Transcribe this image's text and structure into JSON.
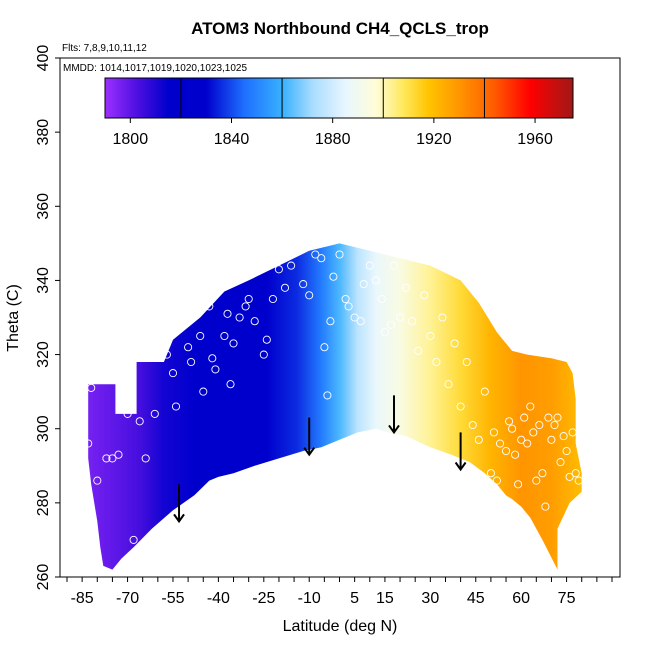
{
  "chart_data": {
    "type": "heatmap",
    "title": "ATOM3 Northbound CH4_QCLS_trop",
    "subtitle_flights": "Flts: 7,8,9,10,11,12",
    "subtitle_dates": "MMDD: 1014,1017,1019,1020,1023,1025",
    "xlabel": "Latitude (deg N)",
    "ylabel": "Theta (C)",
    "xlim": [
      -90,
      90
    ],
    "ylim": [
      260,
      400
    ],
    "x_ticks": [
      "-85",
      "-70",
      "-55",
      "-40",
      "-25",
      "-10",
      "5",
      "15",
      "30",
      "45",
      "60",
      "75"
    ],
    "x_tick_values": [
      -85,
      -70,
      -55,
      -40,
      -25,
      -10,
      5,
      15,
      30,
      45,
      60,
      75
    ],
    "x_minor_step": 5,
    "y_ticks": [
      "260",
      "280",
      "300",
      "320",
      "340",
      "360",
      "380",
      "400"
    ],
    "y_tick_values": [
      260,
      280,
      300,
      320,
      340,
      360,
      380,
      400
    ],
    "colorbar": {
      "min": 1790,
      "max": 1975,
      "ticks": [
        "1800",
        "1840",
        "1880",
        "1920",
        "1960"
      ],
      "tick_values": [
        1800,
        1840,
        1880,
        1920,
        1960
      ],
      "dividers": [
        1820,
        1860,
        1900,
        1940
      ],
      "stops": [
        {
          "value": 1790,
          "color": "#9B30FF"
        },
        {
          "value": 1803,
          "color": "#4B0FE0"
        },
        {
          "value": 1815,
          "color": "#0000CD"
        },
        {
          "value": 1830,
          "color": "#0000CD"
        },
        {
          "value": 1845,
          "color": "#1E6FFF"
        },
        {
          "value": 1860,
          "color": "#38B0FF"
        },
        {
          "value": 1872,
          "color": "#A8DCFF"
        },
        {
          "value": 1885,
          "color": "#E8F6FF"
        },
        {
          "value": 1897,
          "color": "#FFFDD8"
        },
        {
          "value": 1908,
          "color": "#FFE85C"
        },
        {
          "value": 1918,
          "color": "#FFC400"
        },
        {
          "value": 1930,
          "color": "#FF9500"
        },
        {
          "value": 1944,
          "color": "#FF5A00"
        },
        {
          "value": 1958,
          "color": "#FF0000"
        },
        {
          "value": 1975,
          "color": "#A01818"
        }
      ]
    },
    "field_boundary": [
      [
        -83,
        312
      ],
      [
        -74,
        312
      ],
      [
        -74,
        304
      ],
      [
        -67,
        304
      ],
      [
        -67,
        318
      ],
      [
        -58,
        318
      ],
      [
        -55,
        324
      ],
      [
        -46,
        330
      ],
      [
        -38,
        337
      ],
      [
        -30,
        340
      ],
      [
        -20,
        344
      ],
      [
        -10,
        348
      ],
      [
        0,
        350
      ],
      [
        10,
        348
      ],
      [
        20,
        346
      ],
      [
        30,
        344
      ],
      [
        40,
        340
      ],
      [
        46,
        334
      ],
      [
        52,
        326
      ],
      [
        57,
        321
      ],
      [
        62,
        320
      ],
      [
        70,
        319
      ],
      [
        75,
        318
      ],
      [
        77,
        315
      ],
      [
        78,
        308
      ],
      [
        78,
        296
      ],
      [
        80,
        288
      ],
      [
        80,
        283
      ],
      [
        76,
        280
      ],
      [
        72,
        273
      ],
      [
        72,
        262
      ],
      [
        67,
        270
      ],
      [
        63,
        276
      ],
      [
        60,
        279
      ],
      [
        57,
        281
      ],
      [
        55,
        282
      ],
      [
        52,
        285
      ],
      [
        48,
        288
      ],
      [
        43,
        291
      ],
      [
        37,
        293
      ],
      [
        30,
        295
      ],
      [
        22,
        298
      ],
      [
        16,
        299
      ],
      [
        12,
        300
      ],
      [
        6,
        299
      ],
      [
        0,
        297
      ],
      [
        -6,
        295
      ],
      [
        -12,
        294
      ],
      [
        -20,
        292
      ],
      [
        -28,
        290
      ],
      [
        -35,
        288
      ],
      [
        -40,
        287
      ],
      [
        -43,
        286
      ],
      [
        -48,
        282
      ],
      [
        -55,
        278
      ],
      [
        -62,
        273
      ],
      [
        -68,
        268
      ],
      [
        -72,
        265
      ],
      [
        -75,
        262
      ],
      [
        -78,
        263
      ],
      [
        -79,
        268
      ],
      [
        -80,
        275
      ],
      [
        -82,
        285
      ],
      [
        -83,
        292
      ],
      [
        -83,
        300
      ],
      [
        -83,
        312
      ]
    ],
    "field_columns": [
      {
        "lat": -83,
        "value": 1796
      },
      {
        "lat": -74,
        "value": 1800
      },
      {
        "lat": -66,
        "value": 1804
      },
      {
        "lat": -58,
        "value": 1812
      },
      {
        "lat": -48,
        "value": 1818
      },
      {
        "lat": -36,
        "value": 1822
      },
      {
        "lat": -24,
        "value": 1828
      },
      {
        "lat": -14,
        "value": 1836
      },
      {
        "lat": -6,
        "value": 1848
      },
      {
        "lat": 0,
        "value": 1862
      },
      {
        "lat": 6,
        "value": 1876
      },
      {
        "lat": 12,
        "value": 1886
      },
      {
        "lat": 20,
        "value": 1894
      },
      {
        "lat": 30,
        "value": 1903
      },
      {
        "lat": 40,
        "value": 1912
      },
      {
        "lat": 50,
        "value": 1922
      },
      {
        "lat": 60,
        "value": 1930
      },
      {
        "lat": 70,
        "value": 1928
      },
      {
        "lat": 80,
        "value": 1920
      }
    ],
    "sample_points": [
      [
        -83,
        296
      ],
      [
        -82,
        311
      ],
      [
        -80,
        286
      ],
      [
        -77,
        292
      ],
      [
        -76,
        261
      ],
      [
        -75,
        292
      ],
      [
        -73,
        293
      ],
      [
        -70,
        304
      ],
      [
        -68,
        270
      ],
      [
        -66,
        302
      ],
      [
        -64,
        292
      ],
      [
        -61,
        304
      ],
      [
        -58,
        321
      ],
      [
        -57,
        320
      ],
      [
        -55,
        315
      ],
      [
        -54,
        306
      ],
      [
        -50,
        322
      ],
      [
        -49,
        318
      ],
      [
        -46,
        325
      ],
      [
        -45,
        310
      ],
      [
        -43,
        333
      ],
      [
        -42,
        319
      ],
      [
        -41,
        316
      ],
      [
        -38,
        325
      ],
      [
        -37,
        331
      ],
      [
        -36,
        312
      ],
      [
        -35,
        323
      ],
      [
        -33,
        330
      ],
      [
        -31,
        333
      ],
      [
        -30,
        335
      ],
      [
        -28,
        329
      ],
      [
        -25,
        320
      ],
      [
        -24,
        324
      ],
      [
        -22,
        335
      ],
      [
        -20,
        343
      ],
      [
        -18,
        338
      ],
      [
        -16,
        344
      ],
      [
        -14,
        350
      ],
      [
        -12,
        339
      ],
      [
        -10,
        336
      ],
      [
        -8,
        347
      ],
      [
        -6,
        346
      ],
      [
        -5,
        322
      ],
      [
        -4,
        309
      ],
      [
        -3,
        329
      ],
      [
        -2,
        341
      ],
      [
        0,
        347
      ],
      [
        2,
        335
      ],
      [
        3,
        333
      ],
      [
        5,
        330
      ],
      [
        7,
        329
      ],
      [
        8,
        339
      ],
      [
        10,
        344
      ],
      [
        12,
        340
      ],
      [
        14,
        335
      ],
      [
        15,
        326
      ],
      [
        17,
        328
      ],
      [
        18,
        344
      ],
      [
        20,
        330
      ],
      [
        22,
        338
      ],
      [
        24,
        329
      ],
      [
        26,
        321
      ],
      [
        28,
        336
      ],
      [
        30,
        325
      ],
      [
        32,
        318
      ],
      [
        34,
        330
      ],
      [
        36,
        312
      ],
      [
        38,
        323
      ],
      [
        40,
        306
      ],
      [
        42,
        318
      ],
      [
        44,
        301
      ],
      [
        46,
        297
      ],
      [
        48,
        310
      ],
      [
        50,
        288
      ],
      [
        51,
        299
      ],
      [
        52,
        286
      ],
      [
        53,
        296
      ],
      [
        55,
        294
      ],
      [
        56,
        302
      ],
      [
        57,
        300
      ],
      [
        58,
        293
      ],
      [
        59,
        285
      ],
      [
        60,
        297
      ],
      [
        61,
        303
      ],
      [
        62,
        296
      ],
      [
        63,
        306
      ],
      [
        64,
        299
      ],
      [
        65,
        286
      ],
      [
        66,
        301
      ],
      [
        67,
        288
      ],
      [
        68,
        279
      ],
      [
        69,
        303
      ],
      [
        70,
        297
      ],
      [
        71,
        301
      ],
      [
        72,
        303
      ],
      [
        73,
        291
      ],
      [
        74,
        298
      ],
      [
        75,
        294
      ],
      [
        76,
        287
      ],
      [
        77,
        299
      ],
      [
        78,
        288
      ],
      [
        79,
        286
      ]
    ],
    "arrows": [
      {
        "lat": -53,
        "theta_top": 285,
        "theta_bottom": 275
      },
      {
        "lat": -10,
        "theta_top": 303,
        "theta_bottom": 293
      },
      {
        "lat": 18,
        "theta_top": 309,
        "theta_bottom": 299
      },
      {
        "lat": 40,
        "theta_top": 299,
        "theta_bottom": 289
      }
    ]
  }
}
